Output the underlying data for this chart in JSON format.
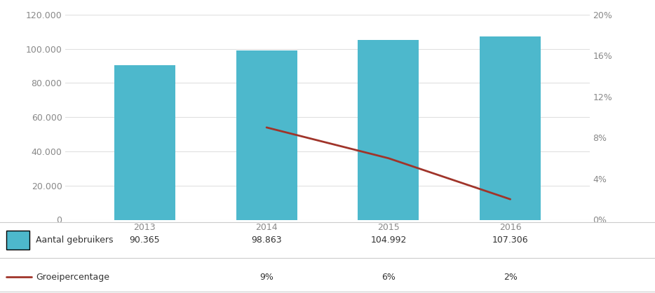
{
  "years": [
    2013,
    2014,
    2015,
    2016
  ],
  "bar_values": [
    90365,
    98863,
    104992,
    107306
  ],
  "growth_values": [
    null,
    0.09,
    0.06,
    0.02
  ],
  "bar_color": "#4db8cc",
  "line_color": "#a0342a",
  "background_color": "#ffffff",
  "grid_color": "#e0e0e0",
  "left_ylim": [
    0,
    120000
  ],
  "right_ylim": [
    0,
    0.2
  ],
  "left_yticks": [
    0,
    20000,
    40000,
    60000,
    80000,
    100000,
    120000
  ],
  "left_yticklabels": [
    "0",
    "20.000",
    "40.000",
    "60.000",
    "80.000",
    "100.000",
    "120.000"
  ],
  "right_yticks": [
    0.0,
    0.04,
    0.08,
    0.12,
    0.16,
    0.2
  ],
  "right_yticklabels": [
    "0%",
    "4%",
    "8%",
    "12%",
    "16%",
    "20%"
  ],
  "legend_label_bar": "Aantal gebruikers",
  "legend_label_line": "Groeipercentage",
  "table_row1": [
    "90.365",
    "98.863",
    "104.992",
    "107.306"
  ],
  "table_row2": [
    "",
    "9%",
    "6%",
    "2%"
  ],
  "tick_color": "#888888",
  "bar_width": 0.5
}
